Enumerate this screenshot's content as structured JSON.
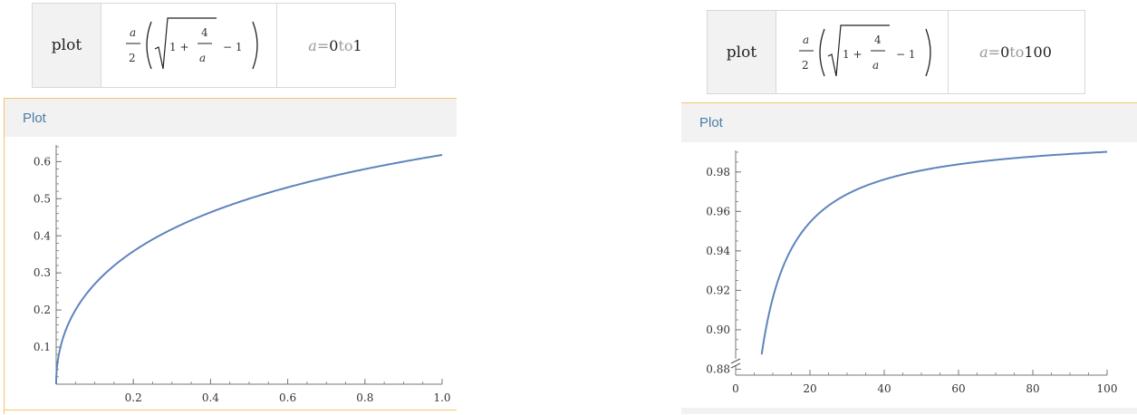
{
  "panels": [
    {
      "input": {
        "command": "plot",
        "range_var": "a",
        "range_eq": " = ",
        "range_from": "0",
        "range_to_word": " to ",
        "range_to": "1"
      },
      "pod_title": "Plot"
    },
    {
      "input": {
        "command": "plot",
        "range_var": "a",
        "range_eq": " = ",
        "range_from": "0",
        "range_to_word": " to ",
        "range_to": "100"
      },
      "pod_title": "Plot"
    }
  ],
  "formula": {
    "frac_num": "a",
    "frac_den": "2",
    "inner_one": "1 + ",
    "inner_num": "4",
    "inner_den": "a",
    "minus_one": "− 1"
  },
  "colors": {
    "curve": "#5f84bd",
    "pod_border": "#f3c56f",
    "header_text": "#4c7ca6"
  },
  "chart_data": [
    {
      "type": "line",
      "series": [
        {
          "function": "(a/2)*(sqrt(1+4/a)-1)",
          "x_range": [
            0,
            1
          ],
          "x": [
            0,
            0.001,
            0.01,
            0.05,
            0.1,
            0.2,
            0.3,
            0.4,
            0.5,
            0.6,
            0.7,
            0.8,
            0.9,
            1.0
          ],
          "values": [
            0,
            0.0311,
            0.0951,
            0.2002,
            0.2702,
            0.3583,
            0.4183,
            0.4633,
            0.5,
            0.5298,
            0.5553,
            0.5772,
            0.5964,
            0.618
          ]
        }
      ],
      "xlim": [
        0,
        1.0
      ],
      "ylim": [
        0,
        0.64
      ],
      "xticks": [
        0.2,
        0.4,
        0.6,
        0.8,
        1.0
      ],
      "xtick_labels": [
        "0.2",
        "0.4",
        "0.6",
        "0.8",
        "1.0"
      ],
      "yticks": [
        0.1,
        0.2,
        0.3,
        0.4,
        0.5,
        0.6
      ],
      "ytick_labels": [
        "0.1",
        "0.2",
        "0.3",
        "0.4",
        "0.5",
        "0.6"
      ],
      "xlabel": "",
      "ylabel": "",
      "grid": false
    },
    {
      "type": "line",
      "series": [
        {
          "function": "(a/2)*(sqrt(1+4/a)-1)",
          "x_range": [
            7,
            100
          ],
          "x": [
            7,
            8,
            10,
            12,
            15,
            20,
            25,
            30,
            40,
            50,
            60,
            70,
            80,
            90,
            100
          ],
          "values": [
            0.8861,
            0.899,
            0.9161,
            0.9282,
            0.9413,
            0.9545,
            0.963,
            0.9688,
            0.9762,
            0.9808,
            0.9839,
            0.9861,
            0.9878,
            0.9892,
            0.9903
          ]
        }
      ],
      "xlim": [
        0,
        100
      ],
      "ylim": [
        0.877,
        0.99
      ],
      "xticks": [
        0,
        20,
        40,
        60,
        80,
        100
      ],
      "xtick_labels": [
        "0",
        "20",
        "40",
        "60",
        "80",
        "100"
      ],
      "yticks": [
        0.88,
        0.9,
        0.92,
        0.94,
        0.96,
        0.98
      ],
      "ytick_labels": [
        "0.88",
        "0.90",
        "0.92",
        "0.94",
        "0.96",
        "0.98"
      ],
      "axis_break": "y",
      "xlabel": "",
      "ylabel": "",
      "grid": false
    }
  ]
}
